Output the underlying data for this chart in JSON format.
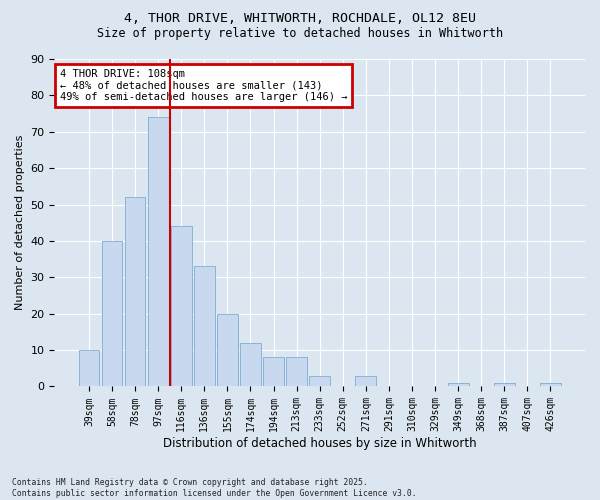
{
  "title_line1": "4, THOR DRIVE, WHITWORTH, ROCHDALE, OL12 8EU",
  "title_line2": "Size of property relative to detached houses in Whitworth",
  "xlabel": "Distribution of detached houses by size in Whitworth",
  "ylabel": "Number of detached properties",
  "categories": [
    "39sqm",
    "58sqm",
    "78sqm",
    "97sqm",
    "116sqm",
    "136sqm",
    "155sqm",
    "174sqm",
    "194sqm",
    "213sqm",
    "233sqm",
    "252sqm",
    "271sqm",
    "291sqm",
    "310sqm",
    "329sqm",
    "349sqm",
    "368sqm",
    "387sqm",
    "407sqm",
    "426sqm"
  ],
  "values": [
    10,
    40,
    52,
    74,
    44,
    33,
    20,
    12,
    8,
    8,
    3,
    0,
    3,
    0,
    0,
    0,
    1,
    0,
    1,
    0,
    1
  ],
  "bar_color": "#c8d9ef",
  "bar_edge_color": "#7aadd4",
  "vline_color": "#cc0000",
  "annotation_text": "4 THOR DRIVE: 108sqm\n← 48% of detached houses are smaller (143)\n49% of semi-detached houses are larger (146) →",
  "annotation_box_color": "#cc0000",
  "ylim": [
    0,
    90
  ],
  "yticks": [
    0,
    10,
    20,
    30,
    40,
    50,
    60,
    70,
    80,
    90
  ],
  "fig_bg_color": "#dce6f0",
  "axes_bg_color": "#dce6f0",
  "grid_color": "#ffffff",
  "footer_line1": "Contains HM Land Registry data © Crown copyright and database right 2025.",
  "footer_line2": "Contains public sector information licensed under the Open Government Licence v3.0."
}
